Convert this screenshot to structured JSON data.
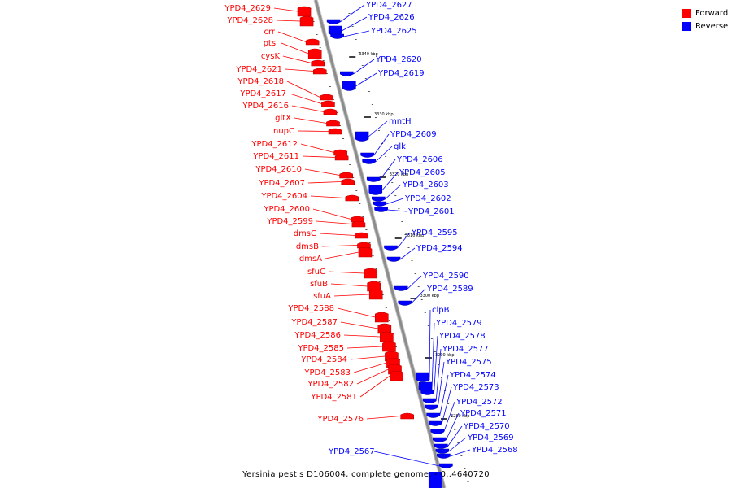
{
  "title": "Yersinia pestis D106004, complete genome. - 0..4640720",
  "legend": [
    {
      "label": "Forward",
      "color": "#ff0000"
    },
    {
      "label": "Reverse",
      "color": "#0000ff"
    }
  ],
  "colors": {
    "forward": "#ff0000",
    "forward_dark": "#b30000",
    "reverse": "#0000ff",
    "reverse_dark": "#0000aa",
    "backbone": "#8c8c8c"
  },
  "scale_labels": [
    "3340 kbp",
    "3330 kbp",
    "3320 kbp",
    "3310 kbp",
    "3300 kbp",
    "3290 kbp",
    "3280 kbp"
  ],
  "forward_genes": [
    "YPD4_2629",
    "YPD4_2628",
    "crr",
    "ptsI",
    "cysK",
    "YPD4_2621",
    "YPD4_2618",
    "YPD4_2617",
    "YPD4_2616",
    "gltX",
    "nupC",
    "YPD4_2612",
    "YPD4_2611",
    "YPD4_2610",
    "YPD4_2607",
    "YPD4_2604",
    "YPD4_2600",
    "YPD4_2599",
    "dmsC",
    "dmsB",
    "dmsA",
    "sfuC",
    "sfuB",
    "sfuA",
    "YPD4_2588",
    "YPD4_2587",
    "YPD4_2586",
    "YPD4_2585",
    "YPD4_2584",
    "YPD4_2583",
    "YPD4_2582",
    "YPD4_2581",
    "YPD4_2576"
  ],
  "reverse_genes": [
    "YPD4_2627",
    "YPD4_2626",
    "YPD4_2625",
    "YPD4_2620",
    "YPD4_2619",
    "mntH",
    "YPD4_2609",
    "glk",
    "YPD4_2606",
    "YPD4_2605",
    "YPD4_2603",
    "YPD4_2602",
    "YPD4_2601",
    "YPD4_2595",
    "YPD4_2594",
    "YPD4_2590",
    "YPD4_2589",
    "clpB",
    "YPD4_2579",
    "YPD4_2578",
    "YPD4_2577",
    "YPD4_2575",
    "YPD4_2574",
    "YPD4_2573",
    "YPD4_2572",
    "YPD4_2571",
    "YPD4_2570",
    "YPD4_2569",
    "YPD4_2568",
    "YPD4_2567"
  ]
}
